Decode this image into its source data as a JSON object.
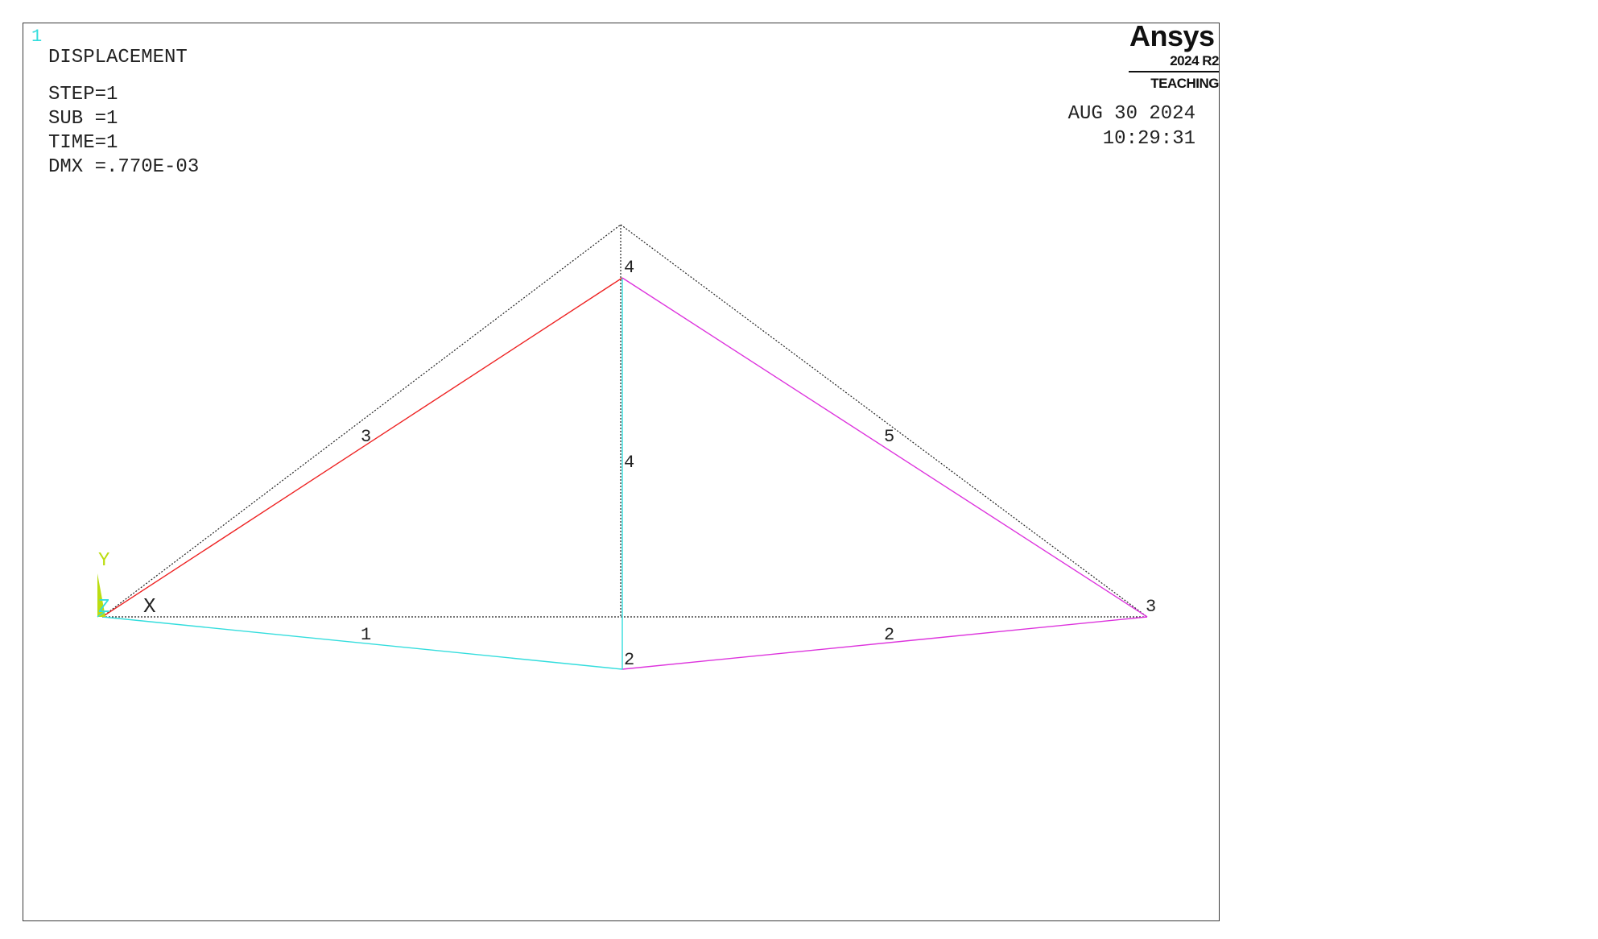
{
  "window_number": "1",
  "plot_title": "DISPLACEMENT",
  "solution_info": {
    "step": "STEP=1",
    "sub": "SUB =1",
    "time": "TIME=1",
    "dmx": "DMX =.770E-03"
  },
  "brand": {
    "name": "Ansys",
    "version": "2024 R2",
    "edition": "TEACHING"
  },
  "datetime": {
    "date": "AUG 30 2024",
    "time": "10:29:31"
  },
  "triad": {
    "y_label": "Y",
    "z_label": "Z",
    "x_label": "X"
  },
  "node_labels": {
    "n2": "2",
    "n3": "3",
    "n4": "4"
  },
  "element_labels": {
    "e1": "1",
    "e2": "2",
    "e3": "3",
    "e4": "4",
    "e5": "5"
  },
  "colors": {
    "undeformed": "#222222",
    "element_1": "#33dddd",
    "element_2": "#dd33dd",
    "element_3": "#ee2222",
    "element_4": "#33dddd",
    "element_5": "#dd33dd",
    "triad_y": "#bbdd11",
    "triad_z": "#33dddd",
    "label": "#222222"
  }
}
